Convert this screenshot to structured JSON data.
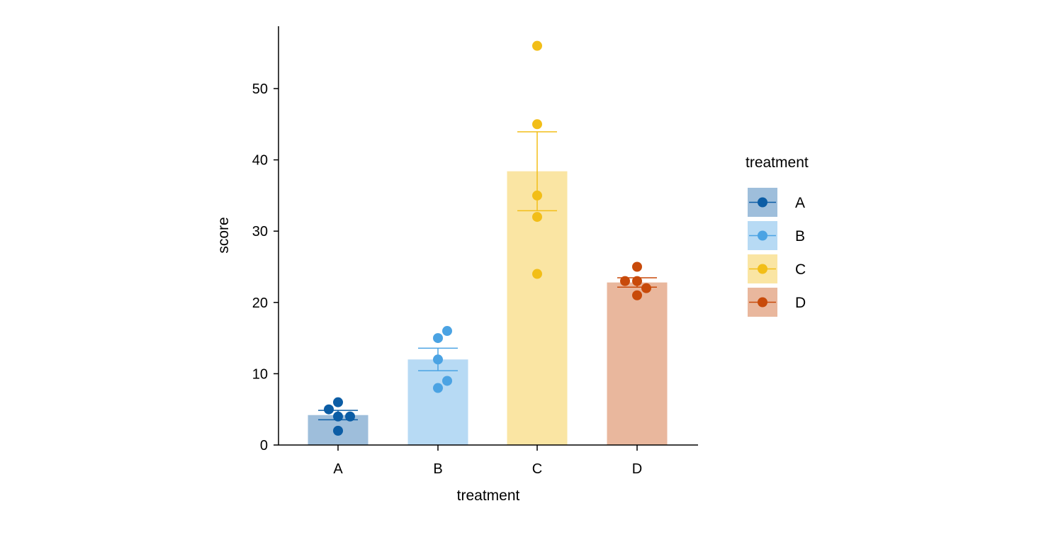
{
  "chart_data": {
    "type": "bar",
    "title": "",
    "xlabel": "treatment",
    "ylabel": "score",
    "ylim": [
      0,
      59
    ],
    "yticks": [
      0,
      10,
      20,
      30,
      40,
      50
    ],
    "categories": [
      "A",
      "B",
      "C",
      "D"
    ],
    "means": [
      4.2,
      12,
      38.4,
      22.8
    ],
    "standard_errors": [
      0.66,
      1.58,
      5.54,
      0.66
    ],
    "points": [
      [
        6,
        5,
        4,
        4,
        2
      ],
      [
        16,
        15,
        12,
        9,
        8
      ],
      [
        56,
        45,
        35,
        32,
        24
      ],
      [
        25,
        23,
        23,
        22,
        21
      ]
    ],
    "colors": [
      "#0C5DA5",
      "#4BA3E3",
      "#F2BE18",
      "#C84A0A"
    ],
    "bar_alpha": 0.4,
    "grid": false,
    "legend": {
      "title": "treatment",
      "placement": "right",
      "entries": [
        "A",
        "B",
        "C",
        "D"
      ]
    }
  }
}
